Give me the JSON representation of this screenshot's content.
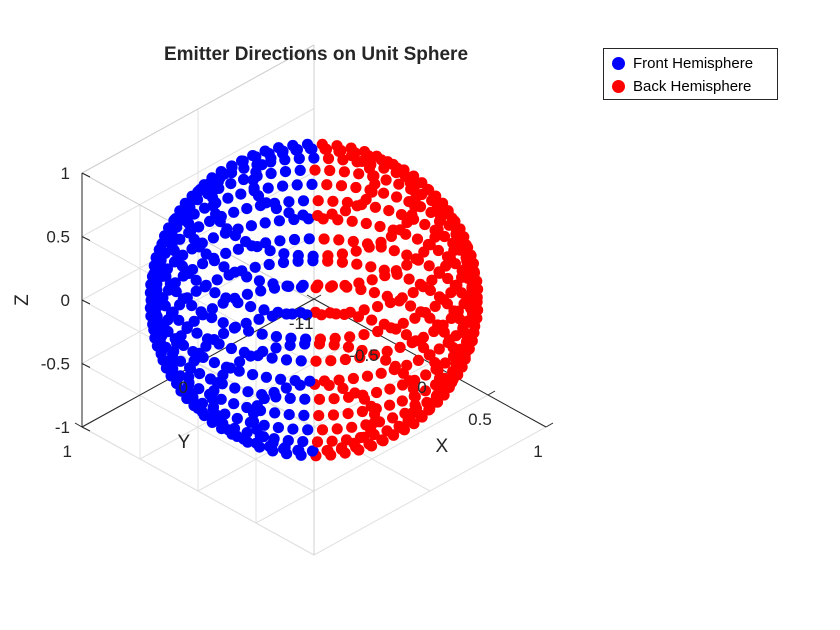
{
  "chart_data": {
    "type": "scatter",
    "subtype": "3d-scatter-unit-sphere",
    "title": "Emitter Directions on Unit Sphere",
    "xlabel": "X",
    "ylabel": "Y",
    "zlabel": "Z",
    "xlim": [
      -1,
      1
    ],
    "ylim": [
      -1,
      1
    ],
    "zlim": [
      -1,
      1
    ],
    "x_ticks": [
      "-1",
      "-0.5",
      "0",
      "0.5",
      "1"
    ],
    "y_ticks": [
      "-1",
      "0",
      "1"
    ],
    "z_ticks": [
      "-1",
      "-0.5",
      "0",
      "0.5",
      "1"
    ],
    "grid": true,
    "legend_position": "top-right",
    "series": [
      {
        "name": "Front Hemisphere",
        "color": "#0000ff",
        "marker": "filled-circle"
      },
      {
        "name": "Back Hemisphere",
        "color": "#ff0000",
        "marker": "filled-circle"
      }
    ],
    "point_generation": {
      "description_source": "spiral of points on the unit sphere, z from 1 to -1",
      "rings": 14,
      "points_per_ring_at_equator": 70
    }
  }
}
